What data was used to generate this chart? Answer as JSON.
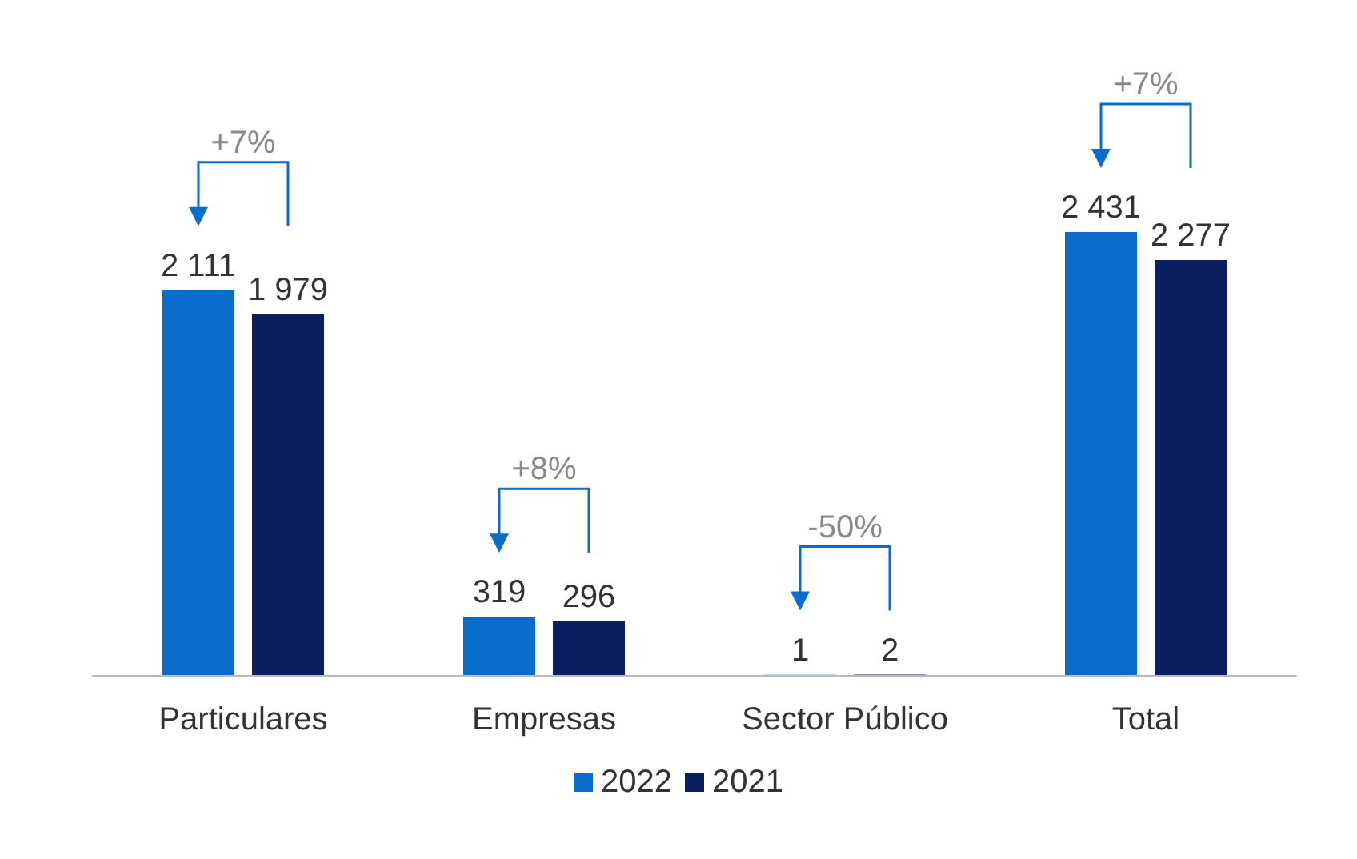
{
  "chart_data": {
    "type": "bar",
    "categories": [
      "Particulares",
      "Empresas",
      "Sector Público",
      "Total"
    ],
    "series": [
      {
        "name": "2022",
        "color": "#0a6dcc",
        "values": [
          2111,
          319,
          1,
          2431
        ]
      },
      {
        "name": "2021",
        "color": "#0c2060",
        "values": [
          1979,
          296,
          2,
          2277
        ]
      }
    ],
    "data_labels": true,
    "legend": "bottom",
    "grid": false,
    "annotations": [
      "+7%",
      "+8%",
      "-50%",
      "+7%"
    ]
  }
}
